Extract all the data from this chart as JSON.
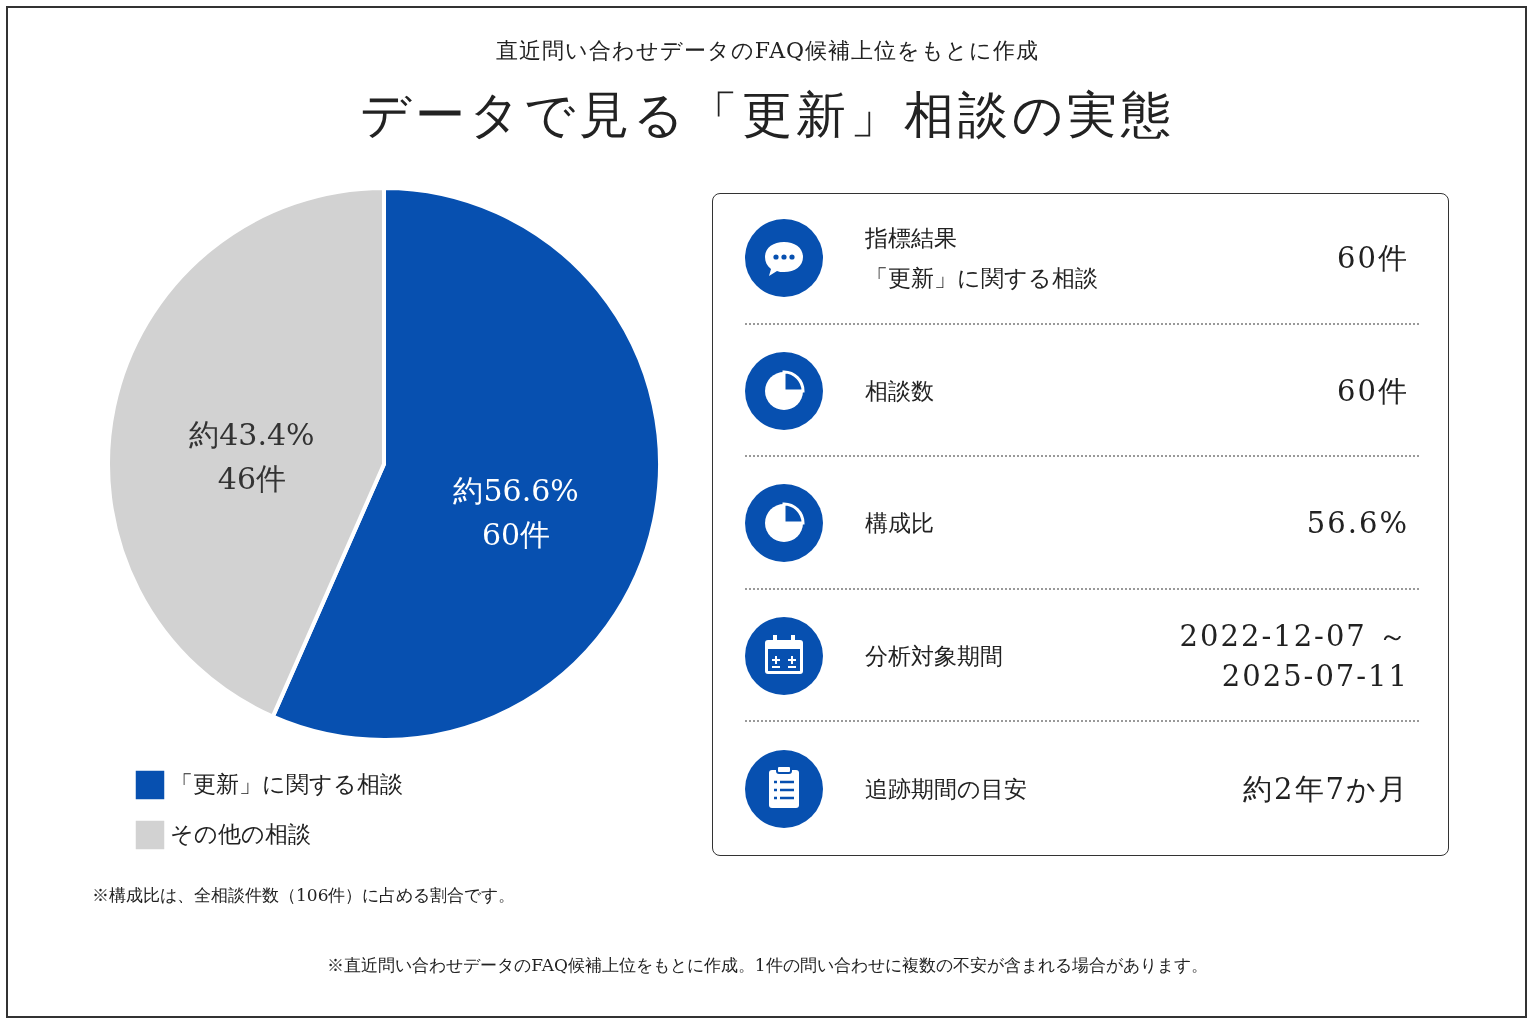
{
  "chart_data": [
    {
      "type": "pie",
      "subtitle": "直近問い合わせデータのFAQ候補上位をもとに作成",
      "title": "データで見る「更新」相談の実態",
      "categories": [
        "「更新」に関する相談",
        "その他の相談"
      ],
      "values": [
        56.6,
        43.4
      ],
      "colors": [
        "#0750b0",
        "#d2d2d2"
      ],
      "value_labels": [
        "約56.6%\n60件",
        "約43.4%\n46件"
      ],
      "legend": "bottom left",
      "annotations": [
        "※構成比は、全相談件数（106件）に占める割合です。",
        "※直近問い合わせデータのFAQ候補上位をもとに作成。1件の問い合わせに複数の不安が含まれる場合があります。"
      ]
    },
    {
      "type": "other",
      "title": "指標結果",
      "categories": [
        "「更新」に関する相談",
        "相談数",
        "構成比",
        "分析対象期間",
        "追跡期間の目安"
      ],
      "value_labels": [
        "60件",
        "60件",
        "56.6%",
        "2022-12-07 ～\n2025-07-11",
        "約2年7か月"
      ]
    }
  ]
}
